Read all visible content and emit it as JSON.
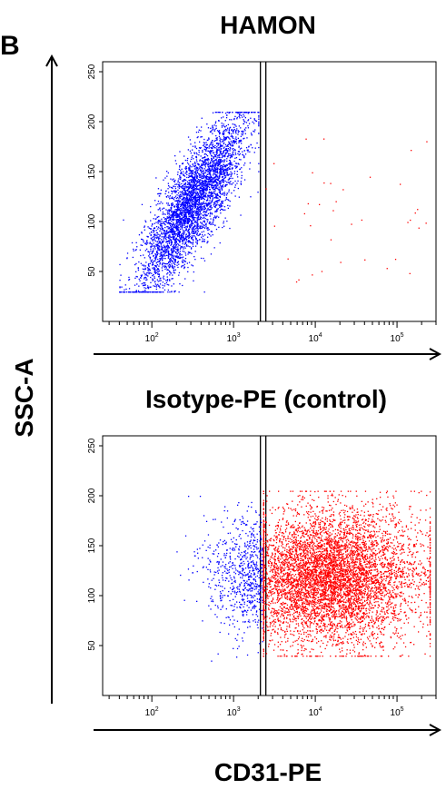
{
  "figure": {
    "panel_letter": "B",
    "title_top": "HAMON",
    "title_bottom": "Isotype-PE (control)",
    "x_axis_label": "CD31-PE",
    "y_axis_label": "SSC-A"
  },
  "colors": {
    "gate_negative": "#0000ff",
    "gate_positive": "#ff0000",
    "axis": "#000000"
  },
  "chart_data": [
    {
      "type": "scatter",
      "title": "HAMON",
      "xlabel": "CD31-PE",
      "ylabel": "SSC-A",
      "x_scale": "log",
      "xlim": [
        25,
        300000
      ],
      "ylim": [
        0,
        260
      ],
      "x_tick_labels": [
        "10^2",
        "10^3",
        "10^4",
        "10^5"
      ],
      "x_tick_values": [
        100,
        1000,
        10000,
        100000
      ],
      "y_tick_labels": [
        "50",
        "100",
        "150",
        "200",
        "250"
      ],
      "y_tick_values": [
        50,
        100,
        150,
        200,
        250
      ],
      "gate_threshold_x": 2300,
      "series": [
        {
          "color": "#0000ff",
          "event_count": 4000,
          "population": {
            "center_x": 320,
            "center_y": 120,
            "x_range": [
              40,
              2000
            ],
            "y_range": [
              30,
              210
            ],
            "shape": "diagonal cloud, SSC rising with fluorescence"
          }
        },
        {
          "color": "#ff0000",
          "event_count": 38,
          "population": {
            "x_range": [
              2300,
              250000
            ],
            "y_range": [
              40,
              200
            ],
            "shape": "sparse scattered events"
          }
        }
      ]
    },
    {
      "type": "scatter",
      "title": "Isotype-PE (control)",
      "xlabel": "CD31-PE",
      "ylabel": "SSC-A",
      "x_scale": "log",
      "xlim": [
        25,
        300000
      ],
      "ylim": [
        0,
        260
      ],
      "x_tick_labels": [
        "10^2",
        "10^3",
        "10^4",
        "10^5"
      ],
      "x_tick_values": [
        100,
        1000,
        10000,
        100000
      ],
      "y_tick_labels": [
        "50",
        "100",
        "150",
        "200",
        "250"
      ],
      "y_tick_values": [
        50,
        100,
        150,
        200,
        250
      ],
      "gate_threshold_x": 2300,
      "series": [
        {
          "color": "#0000ff",
          "event_count": 700,
          "population": {
            "x_range": [
              200,
              2300
            ],
            "y_range": [
              35,
              200
            ],
            "shape": "tail of events below gate"
          }
        },
        {
          "color": "#ff0000",
          "event_count": 6500,
          "population": {
            "center_x": 15000,
            "center_y": 120,
            "x_range": [
              2300,
              250000
            ],
            "y_range": [
              40,
              205
            ],
            "shape": "dense population above gate"
          }
        }
      ]
    }
  ]
}
